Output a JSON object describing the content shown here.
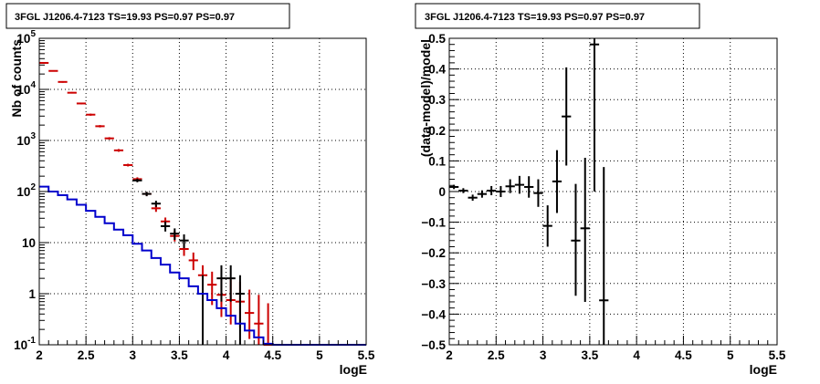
{
  "chart_data": [
    {
      "type": "line",
      "title": "3FGL J1206.4-7123 TS=19.93 PS=0.97 PS=0.97",
      "xlabel": "logE",
      "ylabel": "Nb of counts",
      "xlim": [
        2,
        5.5
      ],
      "ylim": [
        0.1,
        100000
      ],
      "ylog": true,
      "grid": true,
      "x_ticks": [
        2,
        2.5,
        3,
        3.5,
        4,
        4.5,
        5,
        5.5
      ],
      "x_tick_labels": [
        "2",
        "2.5",
        "3",
        "3.5",
        "4",
        "4.5",
        "5",
        "5.5"
      ],
      "y_tick_labels": [
        {
          "value": 0.1,
          "label": "10",
          "exp": "-1"
        },
        {
          "value": 1,
          "label": "1",
          "exp": ""
        },
        {
          "value": 10,
          "label": "10",
          "exp": ""
        },
        {
          "value": 100,
          "label": "10",
          "exp": "2"
        },
        {
          "value": 1000,
          "label": "10",
          "exp": "3"
        },
        {
          "value": 10000,
          "label": "10",
          "exp": "4"
        },
        {
          "value": 100000,
          "label": "10",
          "exp": "5"
        }
      ],
      "series": [
        {
          "color": "#cc0000",
          "kind": "errorbar",
          "points": [
            {
              "x": 2.05,
              "y": 33000,
              "lo": 32000,
              "hi": 34000
            },
            {
              "x": 2.15,
              "y": 23000,
              "lo": 22300,
              "hi": 23700
            },
            {
              "x": 2.25,
              "y": 14000,
              "lo": 13500,
              "hi": 14500
            },
            {
              "x": 2.35,
              "y": 8600,
              "lo": 8300,
              "hi": 8900
            },
            {
              "x": 2.45,
              "y": 5300,
              "lo": 5100,
              "hi": 5500
            },
            {
              "x": 2.55,
              "y": 3200,
              "lo": 3050,
              "hi": 3350
            },
            {
              "x": 2.65,
              "y": 1900,
              "lo": 1800,
              "hi": 2000
            },
            {
              "x": 2.75,
              "y": 1100,
              "lo": 1040,
              "hi": 1160
            },
            {
              "x": 2.85,
              "y": 640,
              "lo": 600,
              "hi": 680
            },
            {
              "x": 2.95,
              "y": 330,
              "lo": 310,
              "hi": 350
            },
            {
              "x": 3.05,
              "y": 175,
              "lo": 160,
              "hi": 190
            },
            {
              "x": 3.15,
              "y": 90,
              "lo": 82,
              "hi": 98
            },
            {
              "x": 3.25,
              "y": 47,
              "lo": 40,
              "hi": 54
            },
            {
              "x": 3.35,
              "y": 26,
              "lo": 21,
              "hi": 31
            },
            {
              "x": 3.45,
              "y": 13.5,
              "lo": 10.5,
              "hi": 17
            },
            {
              "x": 3.55,
              "y": 7.5,
              "lo": 5.5,
              "hi": 10
            },
            {
              "x": 3.65,
              "y": 4.5,
              "lo": 2.9,
              "hi": 6.4
            },
            {
              "x": 3.75,
              "y": 2.3,
              "lo": 1.3,
              "hi": 3.6
            },
            {
              "x": 3.85,
              "y": 1.5,
              "lo": 0.6,
              "hi": 2.7
            },
            {
              "x": 3.95,
              "y": 0.95,
              "lo": 0.35,
              "hi": 2.1
            },
            {
              "x": 4.05,
              "y": 0.75,
              "lo": 0.25,
              "hi": 1.9
            },
            {
              "x": 4.15,
              "y": 0.7,
              "lo": 0.22,
              "hi": 1.7
            },
            {
              "x": 4.25,
              "y": 0.42,
              "lo": 0.13,
              "hi": 1.2
            },
            {
              "x": 4.35,
              "y": 0.26,
              "lo": 0.1,
              "hi": 0.95
            },
            {
              "x": 4.45,
              "y": 0.1,
              "lo": 0.1,
              "hi": 0.65
            }
          ]
        },
        {
          "color": "#000000",
          "kind": "errorbar",
          "points": [
            {
              "x": 3.05,
              "y": 165,
              "lo": 152,
              "hi": 178
            },
            {
              "x": 3.15,
              "y": 90,
              "lo": 81,
              "hi": 99
            },
            {
              "x": 3.25,
              "y": 58,
              "lo": 50,
              "hi": 66
            },
            {
              "x": 3.35,
              "y": 21,
              "lo": 16.5,
              "hi": 26
            },
            {
              "x": 3.45,
              "y": 15,
              "lo": 11.3,
              "hi": 19
            },
            {
              "x": 3.55,
              "y": 11,
              "lo": 7.8,
              "hi": 14.5
            },
            {
              "x": 3.75,
              "y": 1,
              "lo": 0.1,
              "hi": 2.3
            },
            {
              "x": 3.95,
              "y": 2,
              "lo": 0.7,
              "hi": 3.6
            },
            {
              "x": 4.05,
              "y": 2,
              "lo": 0.7,
              "hi": 3.6
            },
            {
              "x": 4.15,
              "y": 1,
              "lo": 0.1,
              "hi": 2.3
            }
          ]
        },
        {
          "color": "#0000cc",
          "kind": "step",
          "x_edges": [
            2.0,
            2.1,
            2.2,
            2.3,
            2.4,
            2.5,
            2.6,
            2.7,
            2.8,
            2.9,
            3.0,
            3.1,
            3.2,
            3.3,
            3.4,
            3.5,
            3.6,
            3.7,
            3.8,
            3.9,
            4.0,
            4.1,
            4.2,
            4.3,
            4.4,
            4.5,
            5.5
          ],
          "values": [
            125,
            100,
            85,
            70,
            55,
            42,
            32,
            24,
            18,
            14,
            9.5,
            7,
            5,
            3.7,
            2.6,
            2.0,
            1.4,
            1.0,
            0.75,
            0.52,
            0.37,
            0.26,
            0.19,
            0.14,
            0.105,
            0.1
          ]
        }
      ]
    },
    {
      "type": "scatter",
      "title": "3FGL J1206.4-7123 TS=19.93 PS=0.97 PS=0.97",
      "xlabel": "logE",
      "ylabel": "(data-model)/model",
      "xlim": [
        2,
        5.5
      ],
      "ylim": [
        -0.5,
        0.5
      ],
      "grid": true,
      "x_ticks": [
        2,
        2.5,
        3,
        3.5,
        4,
        4.5,
        5,
        5.5
      ],
      "x_tick_labels": [
        "2",
        "2.5",
        "3",
        "3.5",
        "4",
        "4.5",
        "5",
        "5.5"
      ],
      "y_ticks": [
        -0.5,
        -0.4,
        -0.3,
        -0.2,
        -0.1,
        0,
        0.1,
        0.2,
        0.3,
        0.4,
        0.5
      ],
      "y_tick_labels": [
        "−0.5",
        "−0.4",
        "−0.3",
        "−0.2",
        "−0.1",
        "0",
        "0.1",
        "0.2",
        "0.3",
        "0.4",
        "0.5"
      ],
      "series": [
        {
          "color": "#000000",
          "kind": "errorbar",
          "points": [
            {
              "x": 2.05,
              "y": 0.015,
              "lo": 0.008,
              "hi": 0.022
            },
            {
              "x": 2.15,
              "y": 0.003,
              "lo": -0.005,
              "hi": 0.011
            },
            {
              "x": 2.25,
              "y": -0.02,
              "lo": -0.03,
              "hi": -0.01
            },
            {
              "x": 2.35,
              "y": -0.008,
              "lo": -0.02,
              "hi": 0.004
            },
            {
              "x": 2.45,
              "y": 0.003,
              "lo": -0.012,
              "hi": 0.018
            },
            {
              "x": 2.55,
              "y": 0.0,
              "lo": -0.018,
              "hi": 0.018
            },
            {
              "x": 2.65,
              "y": 0.017,
              "lo": -0.005,
              "hi": 0.04
            },
            {
              "x": 2.75,
              "y": 0.022,
              "lo": -0.007,
              "hi": 0.051
            },
            {
              "x": 2.85,
              "y": 0.015,
              "lo": -0.02,
              "hi": 0.05
            },
            {
              "x": 2.95,
              "y": -0.005,
              "lo": -0.05,
              "hi": 0.04
            },
            {
              "x": 3.05,
              "y": -0.112,
              "lo": -0.18,
              "hi": -0.045
            },
            {
              "x": 3.15,
              "y": 0.033,
              "lo": -0.07,
              "hi": 0.135
            },
            {
              "x": 3.25,
              "y": 0.245,
              "lo": 0.085,
              "hi": 0.405
            },
            {
              "x": 3.35,
              "y": -0.16,
              "lo": -0.34,
              "hi": 0.025
            },
            {
              "x": 3.45,
              "y": -0.12,
              "lo": -0.36,
              "hi": 0.11
            },
            {
              "x": 3.55,
              "y": 0.48,
              "lo": 0.0,
              "hi": 0.5
            },
            {
              "x": 3.65,
              "y": -0.355,
              "lo": -0.5,
              "hi": 0.08
            }
          ]
        }
      ]
    }
  ]
}
